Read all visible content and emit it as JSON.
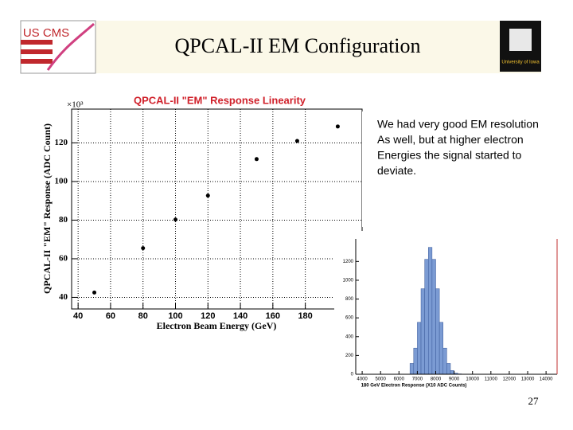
{
  "slide": {
    "title": "QPCAL-II EM Configuration",
    "logo_left": "US CMS",
    "logo_right": "University of Iowa",
    "body": [
      "We had very good EM resolution",
      "As well, but at higher electron",
      "Energies the signal started to",
      "deviate."
    ],
    "page_number": "27"
  },
  "chart_data": [
    {
      "type": "scatter",
      "title": "QPCAL-II \"EM\" Response Linearity",
      "x_label": "Electron Beam Energy (GeV)",
      "y_label": "QPCAL-II \"EM\" Response (ADC Count)",
      "annotation": "×10³",
      "x": [
        50,
        80,
        100,
        120,
        150,
        175,
        200
      ],
      "values": [
        42.5,
        65.5,
        80.3,
        92.7,
        111.6,
        121,
        128.5
      ],
      "color": "#000000",
      "xlim": [
        36,
        215
      ],
      "ylim": [
        34,
        137.5
      ],
      "xticks": [
        40,
        60,
        80,
        100,
        120,
        140,
        160,
        180
      ],
      "yticks": [
        40,
        60,
        80,
        100,
        120
      ],
      "grid": true
    },
    {
      "type": "histogram",
      "x_label": "180 GeV Electron Response (X10 ADC Counts)",
      "bins": [
        6600,
        6800,
        7000,
        7200,
        7400,
        7600,
        7800,
        8000,
        8200,
        8400,
        8600,
        8800,
        9000,
        9200,
        9400
      ],
      "values": [
        115,
        278,
        553,
        910,
        1223,
        1350,
        1223,
        910,
        553,
        278,
        115,
        40,
        12,
        4
      ],
      "color": "#7b9bd3",
      "xlim": [
        3650,
        14600
      ],
      "ylim": [
        0,
        1440
      ],
      "xticks": [
        4000,
        5000,
        6000,
        7000,
        8000,
        9000,
        10000,
        11000,
        12000,
        13000,
        14000
      ],
      "yticks": [
        0,
        200,
        400,
        600,
        800,
        1000,
        1200
      ],
      "grid": false
    }
  ]
}
